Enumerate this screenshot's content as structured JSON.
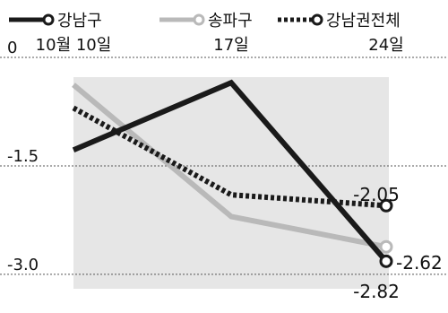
{
  "chart_data": {
    "type": "line",
    "title": "",
    "xlabel": "",
    "ylabel": "",
    "categories": [
      "10월 10일",
      "17일",
      "24일"
    ],
    "ylim": [
      -3.2,
      0
    ],
    "y_ticks": [
      0,
      -1.5,
      -3.0
    ],
    "y_tick_labels": [
      "0",
      "-1.5",
      "-3.0"
    ],
    "legend_position": "top",
    "grid": "dotted horizontal lines at y ticks",
    "series": [
      {
        "name": "강남구",
        "values": [
          -1.28,
          -0.35,
          -2.82
        ],
        "color": "#1a1a1a",
        "style": "solid",
        "end_label": "-2.82"
      },
      {
        "name": "송파구",
        "values": [
          -0.38,
          -2.2,
          -2.62
        ],
        "color": "#b9b9b9",
        "style": "solid",
        "end_label": "-2.62"
      },
      {
        "name": "강남권전체",
        "values": [
          -0.7,
          -1.9,
          -2.05
        ],
        "color": "#1a1a1a",
        "style": "dotted",
        "end_label": "-2.05"
      }
    ]
  }
}
